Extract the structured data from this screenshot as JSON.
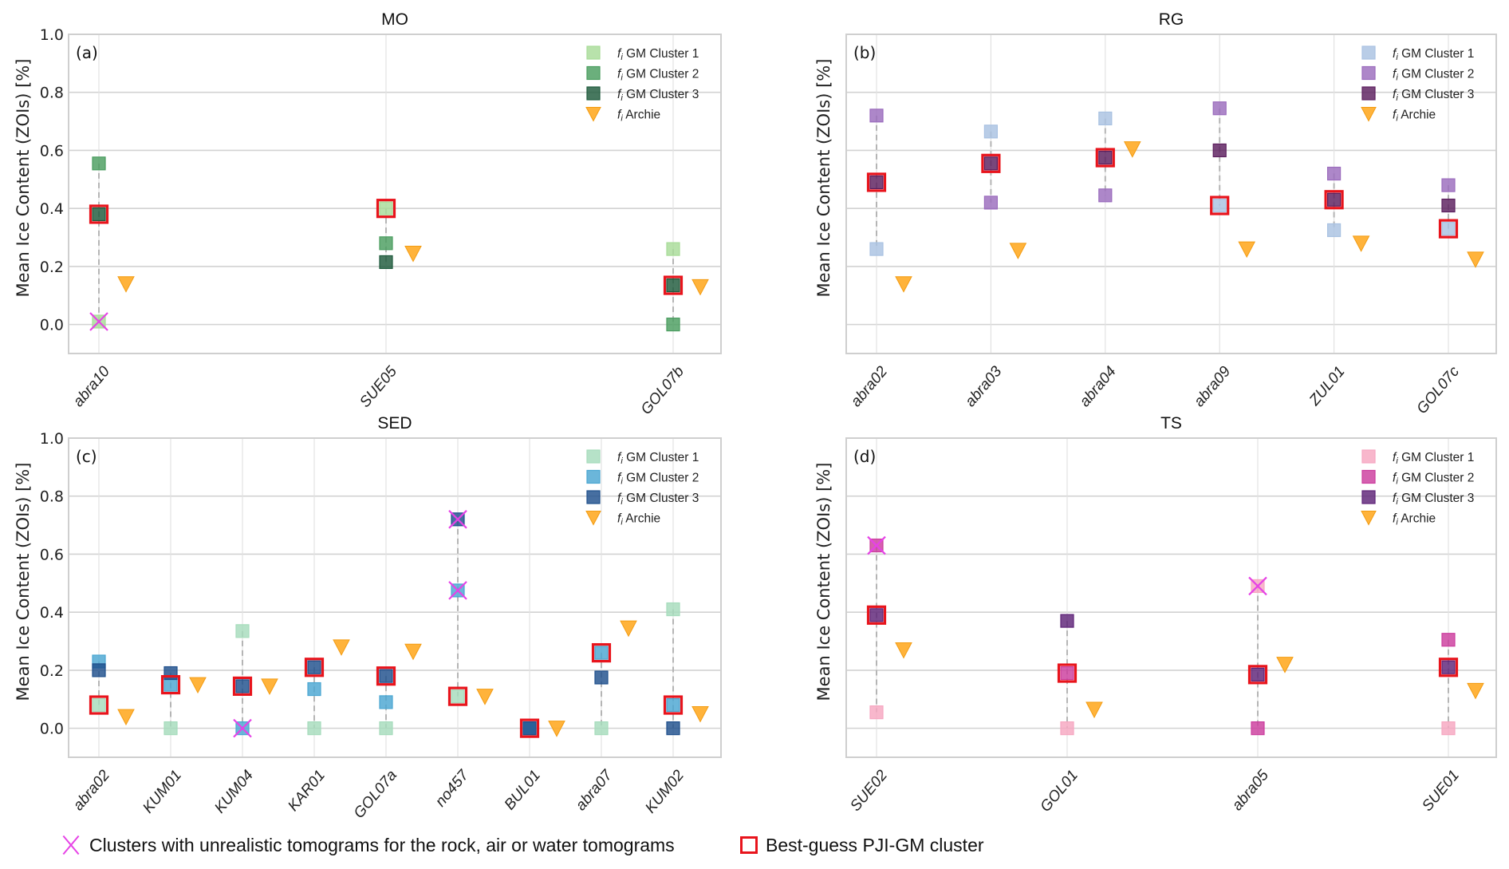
{
  "chart_data": [
    {
      "type": "scatter",
      "panel_letter": "(a)",
      "title": "MO",
      "ylabel": "Mean Ice Content (ZOIs) [%]",
      "ylim": [
        -0.1,
        1.0
      ],
      "yticks": [
        "0.0",
        "0.2",
        "0.4",
        "0.6",
        "0.8",
        "1.0"
      ],
      "ytick_values": [
        0.0,
        0.2,
        0.4,
        0.6,
        0.8,
        1.0
      ],
      "show_ytick_labels": true,
      "grid": true,
      "legend_position": "top-right",
      "categories": [
        "abra10",
        "SUE05",
        "GOL07b"
      ],
      "colors": {
        "cluster1": "#a8dc98",
        "cluster2": "#4a9d5f",
        "cluster3": "#1e5a3c",
        "archie": "#ffa820"
      },
      "legend": [
        "GM Cluster 1",
        "GM Cluster 2",
        "GM Cluster 3",
        "Archie"
      ],
      "series": [
        {
          "name": "fi GM Cluster 1",
          "values": [
            0.01,
            0.4,
            0.26
          ]
        },
        {
          "name": "fi GM Cluster 2",
          "values": [
            0.555,
            0.28,
            0.0
          ]
        },
        {
          "name": "fi GM Cluster 3",
          "values": [
            0.38,
            0.215,
            0.135
          ]
        },
        {
          "name": "fi Archie",
          "values": [
            0.14,
            0.245,
            0.13
          ]
        }
      ],
      "best_guess_cluster": [
        3,
        1,
        3
      ],
      "unrealistic_clusters": [
        [
          1
        ],
        [],
        []
      ]
    },
    {
      "type": "scatter",
      "panel_letter": "(b)",
      "title": "RG",
      "ylabel": "Mean Ice Content (ZOIs) [%]",
      "ylim": [
        -0.1,
        1.0
      ],
      "yticks": [
        "0.0",
        "0.2",
        "0.4",
        "0.6",
        "0.8",
        "1.0"
      ],
      "ytick_values": [
        0.0,
        0.2,
        0.4,
        0.6,
        0.8,
        1.0
      ],
      "show_ytick_labels": false,
      "grid": true,
      "legend_position": "top-right",
      "categories": [
        "abra02",
        "abra03",
        "abra04",
        "abra09",
        "ZUL01",
        "GOL07c"
      ],
      "colors": {
        "cluster1": "#a9c2e2",
        "cluster2": "#9b6cbd",
        "cluster3": "#5c1e5e",
        "archie": "#ffa820"
      },
      "legend": [
        "GM Cluster 1",
        "GM Cluster 2",
        "GM Cluster 3",
        "Archie"
      ],
      "series": [
        {
          "name": "fi GM Cluster 1",
          "values": [
            0.26,
            0.665,
            0.71,
            0.41,
            0.325,
            0.33
          ]
        },
        {
          "name": "fi GM Cluster 2",
          "values": [
            0.72,
            0.42,
            0.445,
            0.745,
            0.52,
            0.48
          ]
        },
        {
          "name": "fi GM Cluster 3",
          "values": [
            0.49,
            0.555,
            0.575,
            0.6,
            0.43,
            0.41
          ]
        },
        {
          "name": "fi Archie",
          "values": [
            0.14,
            0.255,
            0.605,
            0.26,
            0.28,
            0.225
          ]
        }
      ],
      "best_guess_cluster": [
        3,
        3,
        3,
        1,
        3,
        1
      ],
      "unrealistic_clusters": [
        [],
        [],
        [],
        [],
        [],
        []
      ]
    },
    {
      "type": "scatter",
      "panel_letter": "(c)",
      "title": "SED",
      "ylabel": "Mean Ice Content (ZOIs) [%]",
      "ylim": [
        -0.1,
        1.0
      ],
      "yticks": [
        "0.0",
        "0.2",
        "0.4",
        "0.6",
        "0.8",
        "1.0"
      ],
      "ytick_values": [
        0.0,
        0.2,
        0.4,
        0.6,
        0.8,
        1.0
      ],
      "show_ytick_labels": true,
      "grid": true,
      "legend_position": "top-right",
      "categories": [
        "abra02",
        "KUM01",
        "KUM04",
        "KAR01",
        "GOL07a",
        "no457",
        "BUL01",
        "abra07",
        "KUM02"
      ],
      "colors": {
        "cluster1": "#a6dcbc",
        "cluster2": "#4aa6d2",
        "cluster3": "#1f4f8c",
        "archie": "#ffa820"
      },
      "legend": [
        "GM Cluster 1",
        "GM Cluster 2",
        "GM Cluster 3",
        "Archie"
      ],
      "series": [
        {
          "name": "fi GM Cluster 1",
          "values": [
            0.08,
            0.0,
            0.335,
            0.0,
            0.0,
            0.11,
            0.0,
            0.0,
            0.41
          ]
        },
        {
          "name": "fi GM Cluster 2",
          "values": [
            0.23,
            0.15,
            0.0,
            0.135,
            0.09,
            0.475,
            0.0,
            0.26,
            0.08
          ]
        },
        {
          "name": "fi GM Cluster 3",
          "values": [
            0.2,
            0.19,
            0.145,
            0.21,
            0.18,
            0.72,
            0.0,
            0.175,
            0.0
          ]
        },
        {
          "name": "fi Archie",
          "values": [
            0.04,
            0.15,
            0.145,
            0.28,
            0.265,
            0.11,
            0.0,
            0.345,
            0.05
          ]
        }
      ],
      "best_guess_cluster": [
        1,
        2,
        3,
        3,
        3,
        1,
        3,
        2,
        2
      ],
      "unrealistic_clusters": [
        [],
        [],
        [
          2
        ],
        [],
        [],
        [
          2,
          3
        ],
        [],
        [],
        []
      ]
    },
    {
      "type": "scatter",
      "panel_letter": "(d)",
      "title": "TS",
      "ylabel": "Mean Ice Content (ZOIs) [%]",
      "ylim": [
        -0.1,
        1.0
      ],
      "yticks": [
        "0.0",
        "0.2",
        "0.4",
        "0.6",
        "0.8",
        "1.0"
      ],
      "ytick_values": [
        0.0,
        0.2,
        0.4,
        0.6,
        0.8,
        1.0
      ],
      "show_ytick_labels": false,
      "grid": true,
      "legend_position": "top-right",
      "categories": [
        "SUE02",
        "GOL01",
        "abra05",
        "SUE01"
      ],
      "colors": {
        "cluster1": "#f6a7c1",
        "cluster2": "#cc3d9e",
        "cluster3": "#5e2378",
        "archie": "#ffa820"
      },
      "legend": [
        "GM Cluster 1",
        "GM Cluster 2",
        "GM Cluster 3",
        "Archie"
      ],
      "series": [
        {
          "name": "fi GM Cluster 1",
          "values": [
            0.055,
            0.0,
            0.49,
            0.0
          ]
        },
        {
          "name": "fi GM Cluster 2",
          "values": [
            0.63,
            0.19,
            0.0,
            0.305
          ]
        },
        {
          "name": "fi GM Cluster 3",
          "values": [
            0.39,
            0.37,
            0.185,
            0.21
          ]
        },
        {
          "name": "fi Archie",
          "values": [
            0.27,
            0.065,
            0.22,
            0.13
          ]
        }
      ],
      "best_guess_cluster": [
        3,
        2,
        3,
        3
      ],
      "unrealistic_clusters": [
        [
          2
        ],
        [],
        [
          1
        ],
        []
      ]
    }
  ],
  "legend_prefix": "f",
  "legend_subscript": "i",
  "bottom_legend": {
    "unrealistic_label": "Clusters with unrealistic tomograms for the rock, air or water tomograms",
    "unrealistic_color": "#e642e6",
    "best_guess_label": "Best-guess PJI-GM cluster",
    "best_guess_color": "#e8141c"
  }
}
